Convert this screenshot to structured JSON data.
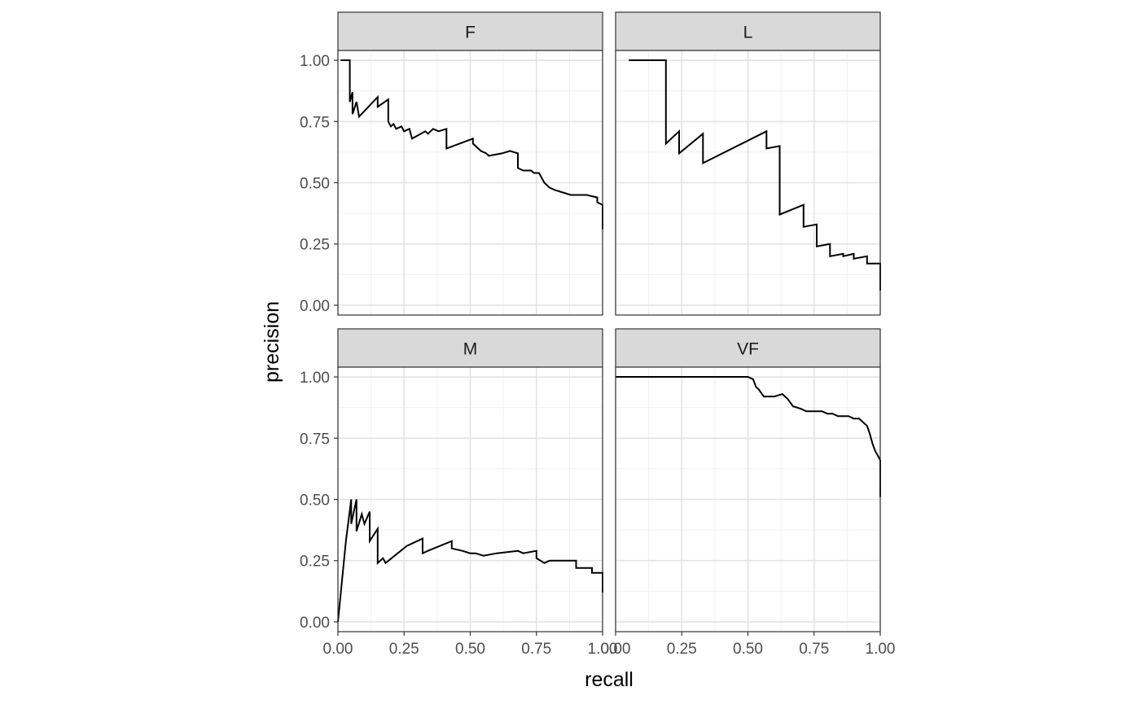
{
  "chart_data": {
    "type": "line",
    "xlabel": "recall",
    "ylabel": "precision",
    "xlim": [
      0,
      1
    ],
    "ylim": [
      -0.04,
      1.04
    ],
    "x_ticks": [
      0,
      0.25,
      0.5,
      0.75,
      1
    ],
    "x_tick_labels": [
      "0.00",
      "0.25",
      "0.50",
      "0.75",
      "1.00"
    ],
    "y_ticks": [
      0,
      0.25,
      0.5,
      0.75,
      1
    ],
    "y_tick_labels": [
      "0.00",
      "0.25",
      "0.50",
      "0.75",
      "1.00"
    ],
    "grid": true,
    "theme": "bw",
    "panels": [
      {
        "label": "F",
        "points": [
          [
            0.01,
            1.0
          ],
          [
            0.045,
            1.0
          ],
          [
            0.045,
            0.83
          ],
          [
            0.055,
            0.87
          ],
          [
            0.055,
            0.78
          ],
          [
            0.07,
            0.83
          ],
          [
            0.08,
            0.77
          ],
          [
            0.15,
            0.85
          ],
          [
            0.15,
            0.81
          ],
          [
            0.19,
            0.84
          ],
          [
            0.19,
            0.75
          ],
          [
            0.2,
            0.73
          ],
          [
            0.21,
            0.74
          ],
          [
            0.22,
            0.72
          ],
          [
            0.24,
            0.73
          ],
          [
            0.25,
            0.71
          ],
          [
            0.27,
            0.72
          ],
          [
            0.28,
            0.68
          ],
          [
            0.33,
            0.71
          ],
          [
            0.34,
            0.7
          ],
          [
            0.36,
            0.72
          ],
          [
            0.38,
            0.71
          ],
          [
            0.41,
            0.72
          ],
          [
            0.41,
            0.64
          ],
          [
            0.51,
            0.68
          ],
          [
            0.51,
            0.66
          ],
          [
            0.54,
            0.63
          ],
          [
            0.56,
            0.62
          ],
          [
            0.57,
            0.61
          ],
          [
            0.62,
            0.62
          ],
          [
            0.65,
            0.63
          ],
          [
            0.68,
            0.62
          ],
          [
            0.68,
            0.56
          ],
          [
            0.7,
            0.55
          ],
          [
            0.73,
            0.55
          ],
          [
            0.74,
            0.54
          ],
          [
            0.76,
            0.54
          ],
          [
            0.78,
            0.5
          ],
          [
            0.8,
            0.48
          ],
          [
            0.82,
            0.47
          ],
          [
            0.85,
            0.46
          ],
          [
            0.88,
            0.45
          ],
          [
            0.94,
            0.45
          ],
          [
            0.98,
            0.44
          ],
          [
            0.98,
            0.42
          ],
          [
            1.0,
            0.41
          ],
          [
            1.0,
            0.31
          ]
        ]
      },
      {
        "label": "L",
        "points": [
          [
            0.05,
            1.0
          ],
          [
            0.19,
            1.0
          ],
          [
            0.19,
            0.66
          ],
          [
            0.24,
            0.71
          ],
          [
            0.24,
            0.62
          ],
          [
            0.33,
            0.7
          ],
          [
            0.33,
            0.58
          ],
          [
            0.57,
            0.71
          ],
          [
            0.57,
            0.64
          ],
          [
            0.62,
            0.65
          ],
          [
            0.62,
            0.37
          ],
          [
            0.71,
            0.41
          ],
          [
            0.71,
            0.32
          ],
          [
            0.76,
            0.33
          ],
          [
            0.76,
            0.24
          ],
          [
            0.81,
            0.25
          ],
          [
            0.81,
            0.2
          ],
          [
            0.86,
            0.21
          ],
          [
            0.86,
            0.2
          ],
          [
            0.9,
            0.21
          ],
          [
            0.9,
            0.19
          ],
          [
            0.95,
            0.2
          ],
          [
            0.95,
            0.17
          ],
          [
            1.0,
            0.17
          ],
          [
            1.0,
            0.06
          ]
        ]
      },
      {
        "label": "M",
        "points": [
          [
            0.0,
            0.0
          ],
          [
            0.03,
            0.33
          ],
          [
            0.05,
            0.5
          ],
          [
            0.05,
            0.4
          ],
          [
            0.07,
            0.5
          ],
          [
            0.07,
            0.37
          ],
          [
            0.09,
            0.44
          ],
          [
            0.1,
            0.4
          ],
          [
            0.12,
            0.45
          ],
          [
            0.12,
            0.33
          ],
          [
            0.15,
            0.38
          ],
          [
            0.15,
            0.24
          ],
          [
            0.17,
            0.26
          ],
          [
            0.18,
            0.24
          ],
          [
            0.26,
            0.31
          ],
          [
            0.28,
            0.32
          ],
          [
            0.32,
            0.34
          ],
          [
            0.32,
            0.28
          ],
          [
            0.34,
            0.29
          ],
          [
            0.43,
            0.33
          ],
          [
            0.43,
            0.3
          ],
          [
            0.47,
            0.29
          ],
          [
            0.5,
            0.28
          ],
          [
            0.52,
            0.28
          ],
          [
            0.55,
            0.27
          ],
          [
            0.6,
            0.28
          ],
          [
            0.68,
            0.29
          ],
          [
            0.7,
            0.28
          ],
          [
            0.75,
            0.29
          ],
          [
            0.75,
            0.26
          ],
          [
            0.78,
            0.24
          ],
          [
            0.8,
            0.25
          ],
          [
            0.9,
            0.25
          ],
          [
            0.9,
            0.22
          ],
          [
            0.96,
            0.22
          ],
          [
            0.96,
            0.2
          ],
          [
            1.0,
            0.2
          ],
          [
            1.0,
            0.12
          ]
        ]
      },
      {
        "label": "VF",
        "points": [
          [
            0.0,
            1.0
          ],
          [
            0.5,
            1.0
          ],
          [
            0.52,
            0.99
          ],
          [
            0.53,
            0.96
          ],
          [
            0.54,
            0.95
          ],
          [
            0.56,
            0.92
          ],
          [
            0.6,
            0.92
          ],
          [
            0.63,
            0.93
          ],
          [
            0.65,
            0.91
          ],
          [
            0.67,
            0.88
          ],
          [
            0.7,
            0.87
          ],
          [
            0.72,
            0.86
          ],
          [
            0.75,
            0.86
          ],
          [
            0.78,
            0.86
          ],
          [
            0.8,
            0.85
          ],
          [
            0.82,
            0.85
          ],
          [
            0.84,
            0.84
          ],
          [
            0.88,
            0.84
          ],
          [
            0.9,
            0.83
          ],
          [
            0.92,
            0.83
          ],
          [
            0.93,
            0.82
          ],
          [
            0.95,
            0.8
          ],
          [
            0.96,
            0.77
          ],
          [
            0.97,
            0.73
          ],
          [
            0.98,
            0.7
          ],
          [
            0.99,
            0.68
          ],
          [
            1.0,
            0.66
          ],
          [
            1.0,
            0.51
          ]
        ]
      }
    ]
  }
}
